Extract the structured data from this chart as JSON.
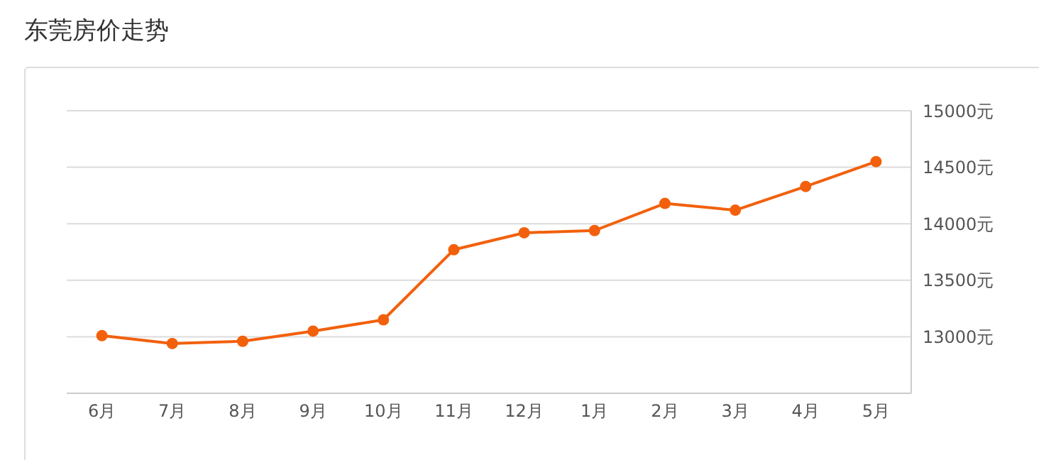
{
  "chart_data": {
    "type": "line",
    "title": "东莞房价走势",
    "categories": [
      "6月",
      "7月",
      "8月",
      "9月",
      "10月",
      "11月",
      "12月",
      "1月",
      "2月",
      "3月",
      "4月",
      "5月"
    ],
    "series": [
      {
        "color": "#f2600c",
        "values": [
          13010,
          12940,
          12960,
          13050,
          13150,
          13770,
          13920,
          13940,
          14180,
          14120,
          14330,
          14550
        ]
      }
    ],
    "ylim": [
      12500,
      15000
    ],
    "yticks": [
      {
        "value": 13000,
        "label": "13000元"
      },
      {
        "value": 13500,
        "label": "13500元"
      },
      {
        "value": 14000,
        "label": "14000元"
      },
      {
        "value": 14500,
        "label": "14500元"
      },
      {
        "value": 15000,
        "label": "15000元"
      }
    ],
    "grid": "y",
    "marker": "circle",
    "line_style": "solid"
  }
}
